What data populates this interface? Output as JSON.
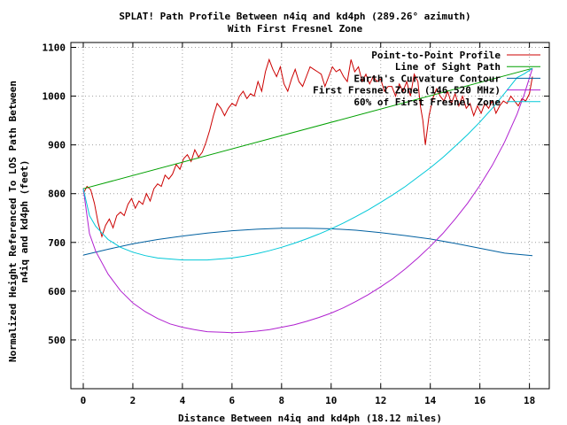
{
  "chart_data": {
    "type": "line",
    "title": "SPLAT! Path Profile Between n4iq and kd4ph (289.26° azimuth)",
    "subtitle": "With First Fresnel Zone",
    "xlabel": "Distance Between n4iq and kd4ph (18.12 miles)",
    "ylabel_line1": "Normalized Height Referenced To LOS Path Between",
    "ylabel_line2": "n4iq and kd4ph (feet)",
    "xlim": [
      -0.5,
      18.8
    ],
    "ylim": [
      400,
      1110
    ],
    "xticks": [
      0,
      2,
      4,
      6,
      8,
      10,
      12,
      14,
      16,
      18
    ],
    "yticks": [
      500,
      600,
      700,
      800,
      900,
      1000,
      1100
    ],
    "grid": true,
    "legend_position": "top-right",
    "series": [
      {
        "name": "Point-to-Point Profile",
        "color": "#cc0000",
        "x": [
          0,
          0.15,
          0.3,
          0.45,
          0.6,
          0.75,
          0.9,
          1.05,
          1.2,
          1.35,
          1.5,
          1.65,
          1.8,
          1.95,
          2.1,
          2.25,
          2.4,
          2.55,
          2.7,
          2.85,
          3.0,
          3.15,
          3.3,
          3.45,
          3.6,
          3.75,
          3.9,
          4.05,
          4.2,
          4.35,
          4.5,
          4.65,
          4.8,
          4.95,
          5.1,
          5.25,
          5.4,
          5.55,
          5.7,
          5.85,
          6.0,
          6.15,
          6.3,
          6.45,
          6.6,
          6.75,
          6.9,
          7.05,
          7.2,
          7.35,
          7.5,
          7.65,
          7.8,
          7.95,
          8.1,
          8.25,
          8.4,
          8.55,
          8.7,
          8.85,
          9.0,
          9.15,
          9.3,
          9.45,
          9.6,
          9.75,
          9.9,
          10.05,
          10.2,
          10.35,
          10.5,
          10.65,
          10.8,
          10.95,
          11.1,
          11.25,
          11.4,
          11.55,
          11.7,
          11.85,
          12.0,
          12.15,
          12.3,
          12.45,
          12.6,
          12.75,
          12.9,
          13.05,
          13.2,
          13.35,
          13.5,
          13.6,
          13.7,
          13.8,
          13.95,
          14.1,
          14.25,
          14.4,
          14.55,
          14.7,
          14.85,
          15.0,
          15.15,
          15.3,
          15.45,
          15.6,
          15.75,
          15.9,
          16.05,
          16.2,
          16.35,
          16.5,
          16.65,
          16.8,
          16.95,
          17.1,
          17.25,
          17.4,
          17.55,
          17.7,
          17.85,
          18.0,
          18.12
        ],
        "y": [
          800,
          815,
          808,
          780,
          740,
          712,
          735,
          748,
          730,
          755,
          762,
          755,
          778,
          790,
          770,
          785,
          778,
          800,
          785,
          810,
          820,
          815,
          838,
          830,
          840,
          860,
          850,
          872,
          880,
          866,
          890,
          875,
          885,
          905,
          930,
          960,
          985,
          975,
          960,
          975,
          985,
          980,
          1000,
          1010,
          995,
          1005,
          1000,
          1030,
          1010,
          1050,
          1075,
          1055,
          1040,
          1060,
          1025,
          1010,
          1035,
          1055,
          1030,
          1020,
          1040,
          1060,
          1055,
          1050,
          1045,
          1020,
          1040,
          1060,
          1050,
          1055,
          1040,
          1030,
          1075,
          1050,
          1060,
          1030,
          1045,
          1025,
          1040,
          1030,
          1035,
          1010,
          1020,
          1020,
          1000,
          1025,
          1010,
          1030,
          1000,
          1045,
          1030,
          980,
          950,
          900,
          960,
          995,
          1015,
          1000,
          990,
          1010,
          985,
          1005,
          980,
          1000,
          975,
          985,
          960,
          980,
          965,
          985,
          975,
          990,
          965,
          980,
          990,
          985,
          1000,
          990,
          980,
          995,
          990,
          1005,
          1040
        ]
      },
      {
        "name": "Line of Sight Path",
        "color": "#00a000",
        "x": [
          0,
          18.12
        ],
        "y": [
          810,
          1057
        ]
      },
      {
        "name": "Earth's Curvature Contour",
        "color": "#0060a0",
        "x": [
          0,
          1,
          2,
          3,
          4,
          5,
          6,
          7,
          8,
          9,
          10,
          11,
          12,
          13,
          14,
          15,
          16,
          17,
          18.12
        ],
        "y": [
          674,
          686,
          697,
          706,
          713,
          719,
          724,
          727,
          729,
          729,
          728,
          725,
          720,
          714,
          707,
          698,
          688,
          678,
          673
        ]
      },
      {
        "name": "First Fresnel Zone (146.520 MHz)",
        "color": "#b020d0",
        "x": [
          0,
          0.25,
          0.5,
          1,
          1.5,
          2,
          2.5,
          3,
          3.5,
          4,
          4.5,
          5,
          5.5,
          6,
          6.5,
          7,
          7.5,
          8,
          8.5,
          9,
          9.5,
          10,
          10.5,
          11,
          11.5,
          12,
          12.5,
          13,
          13.5,
          14,
          14.5,
          15,
          15.5,
          16,
          16.5,
          17,
          17.5,
          17.8,
          18.12
        ],
        "y": [
          810,
          718,
          682,
          635,
          601,
          576,
          558,
          544,
          533,
          526,
          521,
          517,
          516,
          515,
          516,
          518,
          521,
          526,
          531,
          538,
          546,
          555,
          566,
          579,
          593,
          609,
          626,
          646,
          668,
          692,
          718,
          748,
          780,
          817,
          858,
          906,
          963,
          1005,
          1057
        ]
      },
      {
        "name": "60% of First Fresnel Zone",
        "color": "#00c8d8",
        "x": [
          0,
          0.25,
          0.5,
          1,
          1.5,
          2,
          2.5,
          3,
          3.5,
          4,
          4.5,
          5,
          5.5,
          6,
          6.5,
          7,
          7.5,
          8,
          8.5,
          9,
          9.5,
          10,
          10.5,
          11,
          11.5,
          12,
          12.5,
          13,
          13.5,
          14,
          14.5,
          15,
          15.5,
          16,
          16.5,
          17,
          17.5,
          17.8,
          18.12
        ],
        "y": [
          810,
          755,
          733,
          706,
          690,
          680,
          673,
          668,
          666,
          664,
          664,
          664,
          666,
          668,
          672,
          677,
          683,
          690,
          698,
          707,
          717,
          728,
          740,
          753,
          767,
          782,
          798,
          815,
          834,
          853,
          874,
          897,
          921,
          947,
          975,
          1006,
          1038,
          1046,
          1057
        ]
      }
    ]
  }
}
